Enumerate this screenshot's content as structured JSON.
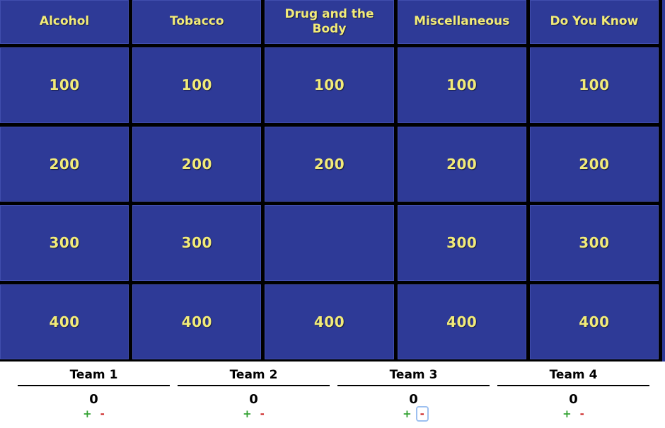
{
  "board": {
    "categories": [
      "Alcohol",
      "Tobacco",
      "Drug and the Body",
      "Miscellaneous",
      "Do You Know"
    ],
    "rows": [
      [
        "100",
        "100",
        "100",
        "100",
        "100"
      ],
      [
        "200",
        "200",
        "200",
        "200",
        "200"
      ],
      [
        "300",
        "300",
        "",
        "300",
        "300"
      ],
      [
        "400",
        "400",
        "400",
        "400",
        "400"
      ]
    ],
    "used_cell": {
      "category": "Drug and the Body",
      "value": "300"
    }
  },
  "teams": [
    {
      "name": "Team 1",
      "score": "0",
      "plus_label": "+",
      "minus_label": "-",
      "minus_focused": false
    },
    {
      "name": "Team 2",
      "score": "0",
      "plus_label": "+",
      "minus_label": "-",
      "minus_focused": false
    },
    {
      "name": "Team 3",
      "score": "0",
      "plus_label": "+",
      "minus_label": "-",
      "minus_focused": true
    },
    {
      "name": "Team 4",
      "score": "0",
      "plus_label": "+",
      "minus_label": "-",
      "minus_focused": false
    }
  ],
  "colors": {
    "board_blue": "#2e3a97",
    "grid_black": "#000000",
    "cell_text_yellow": "#f2eb79",
    "footer_white": "#ffffff",
    "plus_green": "#2fa12f",
    "minus_red": "#cc2525",
    "focus_ring_blue": "#9dc0f0"
  }
}
